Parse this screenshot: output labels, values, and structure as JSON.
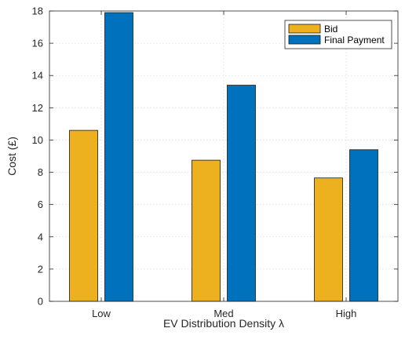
{
  "chart_data": {
    "type": "bar",
    "categories": [
      "Low",
      "Med",
      "High"
    ],
    "series": [
      {
        "name": "Bid",
        "values": [
          10.6,
          8.75,
          7.65
        ],
        "color": "#EDB120"
      },
      {
        "name": "Final Payment",
        "values": [
          17.9,
          13.4,
          9.4
        ],
        "color": "#0072BD"
      }
    ],
    "xlabel": "EV Distribution Density λ",
    "ylabel": "Cost (£)",
    "ylim": [
      0,
      18
    ],
    "yticks": [
      0,
      2,
      4,
      6,
      8,
      10,
      12,
      14,
      16,
      18
    ],
    "grid": true,
    "legend_position": "top-right"
  }
}
